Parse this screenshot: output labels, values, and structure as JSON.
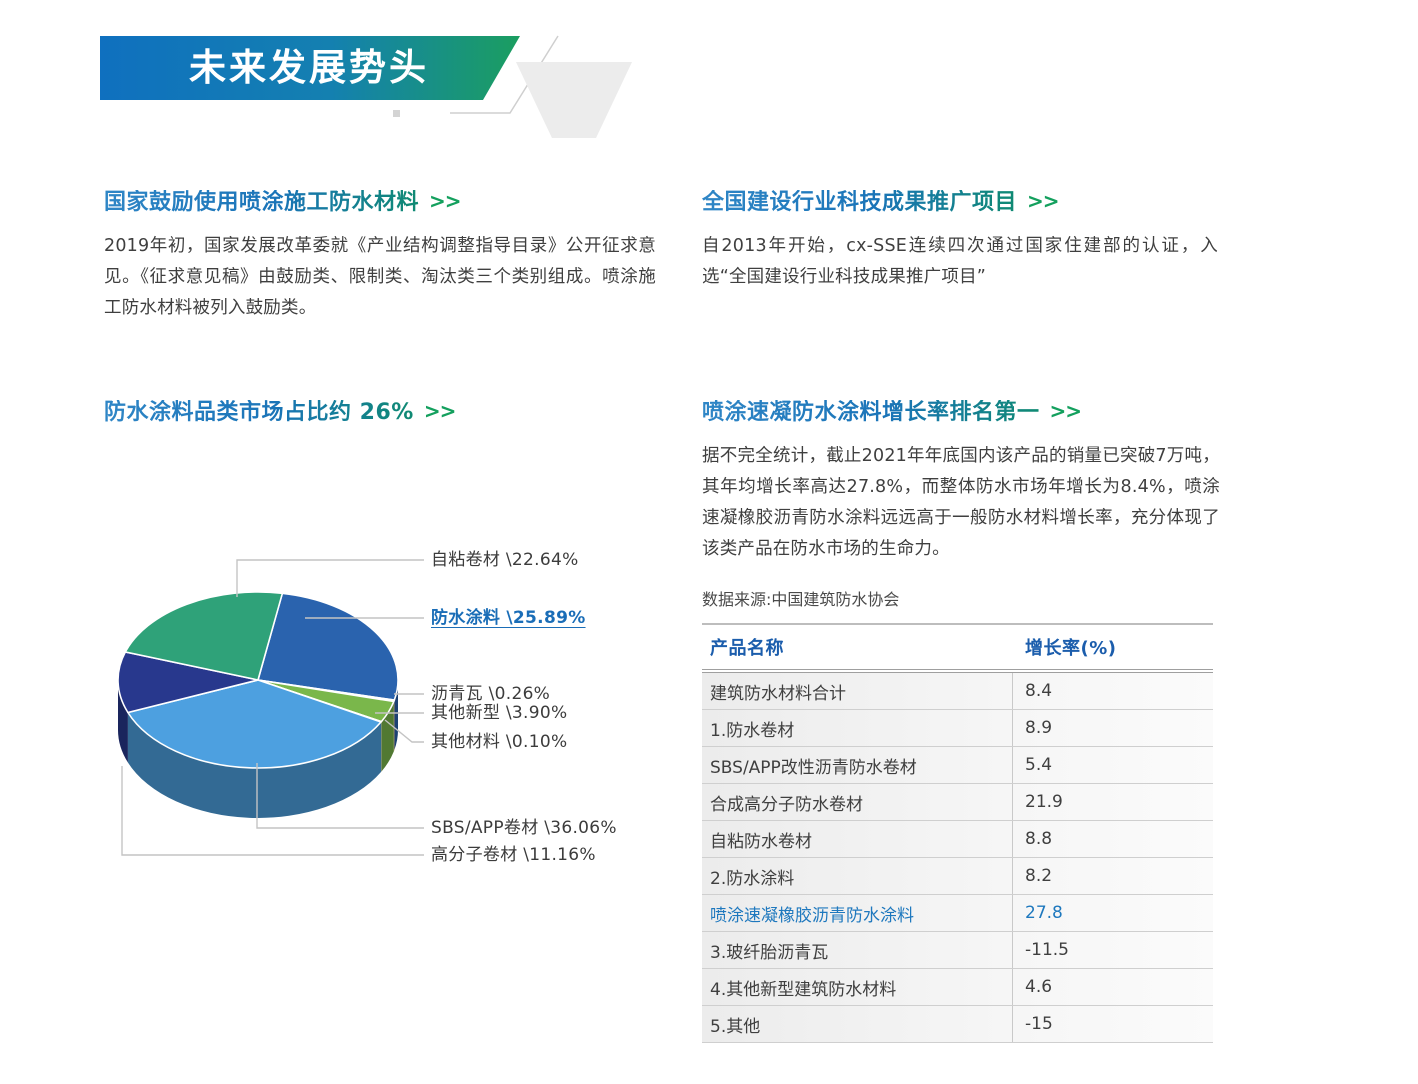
{
  "banner": {
    "title": "未来发展势头"
  },
  "sections": {
    "policy": {
      "title": "国家鼓励使用喷涂施工防水材料",
      "arrow": ">>",
      "body": "2019年初，国家发展改革委就《产业结构调整指导目录》公开征求意见。《征求意见稿》由鼓励类、限制类、淘汰类三个类别组成。喷涂施工防水材料被列入鼓励类。"
    },
    "certification": {
      "title": "全国建设行业科技成果推广项目",
      "arrow": ">>",
      "body": "自2013年开始，cx-SSE连续四次通过国家住建部的认证，入选“全国建设行业科技成果推广项目”"
    },
    "market_share": {
      "title": "防水涂料品类市场占比约 26%",
      "arrow": ">>"
    },
    "growth_rank": {
      "title": "喷涂速凝防水涂料增长率排名第一",
      "arrow": ">>",
      "body": "据不完全统计，截止2021年年底国内该产品的销量已突破7万吨，其年均增长率高达27.8%，而整体防水市场年增长为8.4%，喷涂速凝橡胶沥青防水涂料远远高于一般防水材料增长率，充分体现了该类产品在防水市场的生命力。",
      "source": "数据来源:中国建筑防水协会"
    }
  },
  "chart_data": {
    "type": "pie",
    "style": "3d",
    "title": "防水涂料品类市场占比约 26%",
    "unit": "percent",
    "start_angle_deg": 10,
    "slices": [
      {
        "id": "waterproof-coating",
        "label": "防水涂料",
        "value": 25.89,
        "display": "防水涂料 \\25.89%",
        "color": "#2a63ae",
        "highlight": true
      },
      {
        "id": "asphalt-shingle",
        "label": "沥青瓦",
        "value": 0.26,
        "display": "沥青瓦 \\0.26%",
        "color": "#f0a14c",
        "highlight": false
      },
      {
        "id": "other-new-type",
        "label": "其他新型",
        "value": 3.9,
        "display": "其他新型 \\3.90%",
        "color": "#7ab74b",
        "highlight": false
      },
      {
        "id": "other-materials",
        "label": "其他材料",
        "value": 0.1,
        "display": "其他材料 \\0.10%",
        "color": "#d9d9d9",
        "highlight": false
      },
      {
        "id": "sbs-app-membrane",
        "label": "SBS/APP卷材",
        "value": 36.06,
        "display": "SBS/APP卷材 \\36.06%",
        "color": "#4da0e0",
        "highlight": false
      },
      {
        "id": "polymer-membrane",
        "label": "高分子卷材",
        "value": 11.16,
        "display": "高分子卷材 \\11.16%",
        "color": "#28388d",
        "highlight": false
      },
      {
        "id": "self-adhesive-membrane",
        "label": "自粘卷材",
        "value": 22.64,
        "display": "自粘卷材 \\22.64%",
        "color": "#2fa279",
        "highlight": false
      }
    ]
  },
  "table": {
    "headers": [
      "产品名称",
      "增长率(%)"
    ],
    "rows": [
      {
        "name": "建筑防水材料合计",
        "value": "8.4",
        "highlight": false
      },
      {
        "name": "1.防水卷材",
        "value": "8.9",
        "highlight": false
      },
      {
        "name": "SBS/APP改性沥青防水卷材",
        "value": "5.4",
        "highlight": false
      },
      {
        "name": "合成高分子防水卷材",
        "value": "21.9",
        "highlight": false
      },
      {
        "name": "自粘防水卷材",
        "value": "8.8",
        "highlight": false
      },
      {
        "name": "2.防水涂料",
        "value": "8.2",
        "highlight": false
      },
      {
        "name": "喷涂速凝橡胶沥青防水涂料",
        "value": "27.8",
        "highlight": true
      },
      {
        "name": "3.玻纤胎沥青瓦",
        "value": "-11.5",
        "highlight": false
      },
      {
        "name": "4.其他新型建筑防水材料",
        "value": "4.6",
        "highlight": false
      },
      {
        "name": "5.其他",
        "value": "-15",
        "highlight": false
      }
    ]
  },
  "colors": {
    "accent_blue": "#1b76bd",
    "accent_green": "#14a05e",
    "banner_gradient_start": "#0f70bf",
    "banner_gradient_end": "#1b9e60",
    "table_header_blue": "#1b5dac",
    "highlight_blue": "#1e78be",
    "body_text": "#3f3f3f"
  }
}
